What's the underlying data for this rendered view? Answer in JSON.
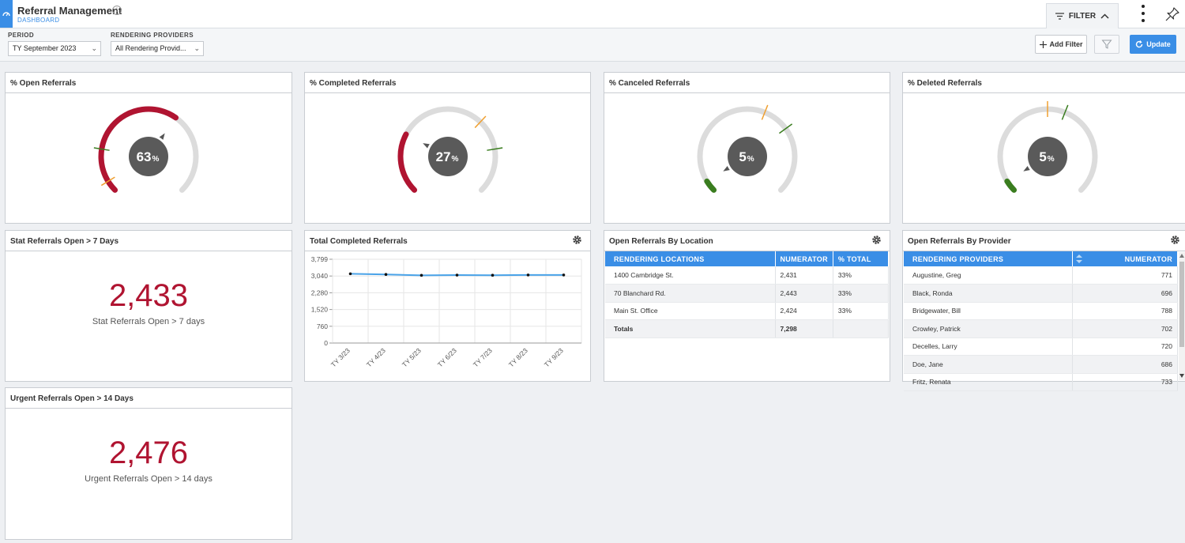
{
  "header": {
    "title": "Referral Management",
    "subtitle": "DASHBOARD",
    "filter_tab_label": "FILTER"
  },
  "filters": {
    "period_label": "PERIOD",
    "period_value": "TY September 2023",
    "providers_label": "RENDERING PROVIDERS",
    "providers_value": "All Rendering Provid...",
    "add_filter_label": "Add Filter",
    "update_label": "Update"
  },
  "colors": {
    "accent": "#3a8ee6",
    "gauge_red": "#b01431",
    "gauge_green": "#3a7d1f",
    "gauge_track": "#dcdcdc",
    "big_number": "#b01431"
  },
  "gauges": [
    {
      "title": "% Open Referrals",
      "value": 63,
      "unit": "%",
      "color": "red",
      "target_marker": 5,
      "goal_marker": 20
    },
    {
      "title": "% Completed Referrals",
      "value": 27,
      "unit": "%",
      "color": "red",
      "target_marker": 66,
      "goal_marker": 80
    },
    {
      "title": "% Canceled Referrals",
      "value": 5,
      "unit": "%",
      "color": "green",
      "target_marker": 58,
      "goal_marker": 70
    },
    {
      "title": "% Deleted Referrals",
      "value": 5,
      "unit": "%",
      "color": "green",
      "target_marker": 50,
      "goal_marker": 58
    }
  ],
  "stat_card": {
    "title": "Stat Referrals Open > 7 Days",
    "value": "2,433",
    "caption": "Stat Referrals Open > 7 days"
  },
  "urgent_card": {
    "title": "Urgent Referrals Open > 14 Days",
    "value": "2,476",
    "caption": "Urgent Referrals Open > 14 days"
  },
  "line_card": {
    "title": "Total Completed Referrals"
  },
  "chart_data": {
    "type": "line",
    "title": "Total Completed Referrals",
    "categories": [
      "TY 3/23",
      "TY 4/23",
      "TY 5/23",
      "TY 6/23",
      "TY 7/23",
      "TY 8/23",
      "TY 9/23"
    ],
    "series": [
      {
        "values": [
          3140,
          3110,
          3070,
          3080,
          3075,
          3085,
          3085
        ]
      }
    ],
    "y_ticks": [
      "3,799",
      "3,040",
      "2,280",
      "1,520",
      "760",
      "0"
    ],
    "ylim": [
      0,
      3799
    ],
    "grid": true,
    "line_color": "#4aa3e8"
  },
  "location_table": {
    "title": "Open Referrals By Location",
    "columns": [
      "RENDERING LOCATIONS",
      "NUMERATOR",
      "% TOTAL"
    ],
    "rows": [
      [
        "1400 Cambridge St.",
        "2,431",
        "33%"
      ],
      [
        "70 Blanchard Rd.",
        "2,443",
        "33%"
      ],
      [
        "Main St. Office",
        "2,424",
        "33%"
      ]
    ],
    "totals": [
      "Totals",
      "7,298",
      ""
    ]
  },
  "provider_table": {
    "title": "Open Referrals By Provider",
    "columns": [
      "RENDERING PROVIDERS",
      "NUMERATOR"
    ],
    "rows": [
      [
        "Augustine, Greg",
        "771"
      ],
      [
        "Black, Ronda",
        "696"
      ],
      [
        "Bridgewater, Bill",
        "788"
      ],
      [
        "Crowley, Patrick",
        "702"
      ],
      [
        "Decelles, Larry",
        "720"
      ],
      [
        "Doe, Jane",
        "686"
      ],
      [
        "Fritz, Renata",
        "733"
      ]
    ]
  }
}
